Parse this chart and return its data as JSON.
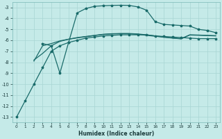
{
  "xlabel": "Humidex (Indice chaleur)",
  "bg_color": "#c5eae8",
  "grid_color": "#a8d5d3",
  "line_color": "#1a6b6a",
  "xlim": [
    -0.5,
    23.5
  ],
  "ylim": [
    -13.5,
    -2.5
  ],
  "xticks": [
    0,
    1,
    2,
    3,
    4,
    5,
    6,
    7,
    8,
    9,
    10,
    11,
    12,
    13,
    14,
    15,
    16,
    17,
    18,
    19,
    20,
    21,
    22,
    23
  ],
  "yticks": [
    -13,
    -12,
    -11,
    -10,
    -9,
    -8,
    -7,
    -6,
    -5,
    -4,
    -3
  ],
  "line1_x": [
    0,
    1,
    2,
    3,
    4,
    5,
    6,
    7,
    8,
    9,
    10,
    11,
    12,
    13,
    14,
    15,
    16,
    17,
    18,
    19,
    20,
    21,
    22,
    23
  ],
  "line1_y": [
    -13,
    -11.5,
    -10.0,
    -8.5,
    -7.0,
    -6.5,
    -6.2,
    -6.0,
    -5.8,
    -5.7,
    -5.6,
    -5.55,
    -5.5,
    -5.5,
    -5.5,
    -5.5,
    -5.6,
    -5.65,
    -5.7,
    -5.75,
    -5.8,
    -5.85,
    -5.85,
    -5.85
  ],
  "line2_x": [
    2,
    3,
    4,
    5,
    6,
    7,
    8,
    9,
    10,
    11,
    12,
    13,
    14,
    15,
    16,
    17,
    18,
    19,
    20,
    21,
    22,
    23
  ],
  "line2_y": [
    -7.8,
    -7.2,
    -6.5,
    -6.1,
    -5.9,
    -5.75,
    -5.65,
    -5.55,
    -5.45,
    -5.4,
    -5.38,
    -5.38,
    -5.42,
    -5.5,
    -5.6,
    -5.7,
    -5.78,
    -5.85,
    -5.5,
    -5.52,
    -5.55,
    -5.58
  ],
  "line3_x": [
    3,
    4,
    5,
    6,
    7,
    8,
    9,
    10,
    11,
    12,
    13,
    14,
    15,
    16,
    17,
    18,
    19,
    20,
    21,
    22,
    23
  ],
  "line3_y": [
    -6.3,
    -6.5,
    -9.0,
    -6.2,
    -3.5,
    -3.1,
    -2.9,
    -2.85,
    -2.82,
    -2.8,
    -2.82,
    -2.95,
    -3.25,
    -4.3,
    -4.55,
    -4.6,
    -4.65,
    -4.7,
    -5.0,
    -5.1,
    -5.3
  ],
  "line4_x": [
    2,
    3,
    4,
    5,
    6,
    7,
    8,
    9,
    10,
    11,
    12,
    13,
    14,
    15,
    16,
    17,
    18,
    19,
    20,
    21,
    22,
    23
  ],
  "line4_y": [
    -7.9,
    -6.5,
    -6.3,
    -6.05,
    -5.9,
    -5.78,
    -5.67,
    -5.57,
    -5.47,
    -5.42,
    -5.4,
    -5.4,
    -5.45,
    -5.55,
    -5.63,
    -5.72,
    -5.8,
    -5.87,
    -5.52,
    -5.54,
    -5.57,
    -5.6
  ]
}
